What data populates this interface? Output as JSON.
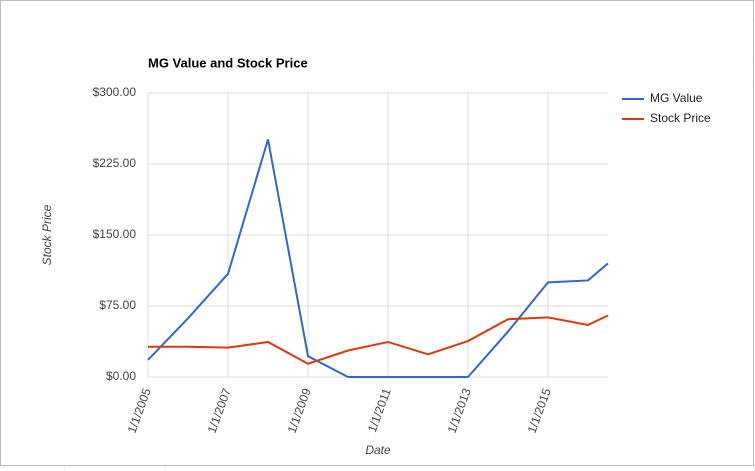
{
  "chart_data": {
    "type": "line",
    "title": "MG Value and Stock Price",
    "x_label": "Date",
    "y_label": "Stock Price",
    "x": [
      2005,
      2006,
      2007,
      2008,
      2009,
      2010,
      2011,
      2012,
      2013,
      2014,
      2015,
      2016,
      2016.5
    ],
    "series": [
      {
        "name": "MG Value",
        "color": "#3366cc",
        "values": [
          18,
          62,
          109,
          251,
          22,
          0,
          0,
          0,
          0,
          48,
          100,
          102,
          120
        ]
      },
      {
        "name": "Stock Price",
        "color": "#dc3912",
        "values": [
          32,
          32,
          31,
          37,
          14,
          28,
          37,
          24,
          38,
          61,
          63,
          55,
          65
        ]
      }
    ],
    "xlim": [
      2005,
      2016.5
    ],
    "xticks": [
      {
        "value": 2005,
        "label": "1/1/2005"
      },
      {
        "value": 2007,
        "label": "1/1/2007"
      },
      {
        "value": 2009,
        "label": "1/1/2009"
      },
      {
        "value": 2011,
        "label": "1/1/2011"
      },
      {
        "value": 2013,
        "label": "1/1/2013"
      },
      {
        "value": 2015,
        "label": "1/1/2015"
      }
    ],
    "ylim": [
      0,
      300
    ],
    "yticks": [
      {
        "value": 0,
        "label": "$0.00"
      },
      {
        "value": 75,
        "label": "$75.00"
      },
      {
        "value": 150,
        "label": "$150.00"
      },
      {
        "value": 225,
        "label": "$225.00"
      },
      {
        "value": 300,
        "label": "$300.00"
      }
    ],
    "grid": true,
    "legend": "right"
  }
}
